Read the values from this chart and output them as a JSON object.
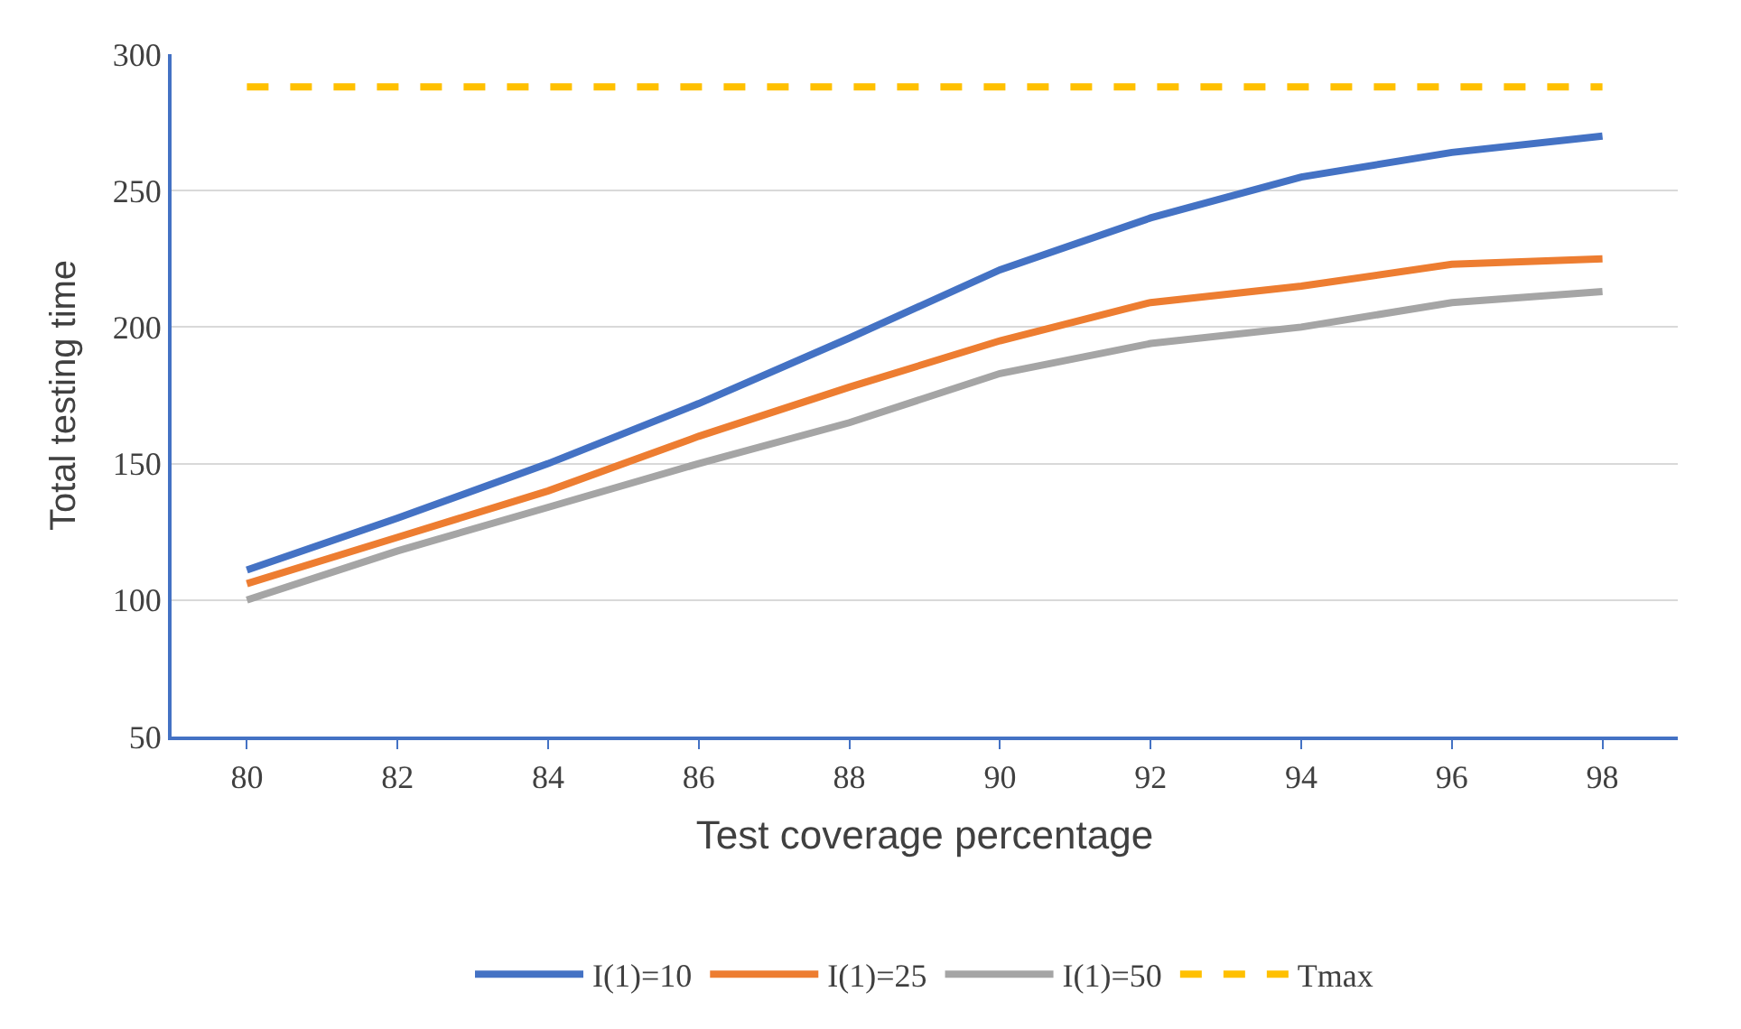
{
  "chart_data": {
    "type": "line",
    "xlabel": "Test coverage percentage",
    "ylabel": "Total testing time",
    "categories": [
      "80",
      "82",
      "84",
      "86",
      "88",
      "90",
      "92",
      "94",
      "96",
      "98"
    ],
    "series": [
      {
        "name": "I(1)=10",
        "color": "#4472c4",
        "values": [
          111,
          130,
          150,
          172,
          196,
          221,
          240,
          255,
          264,
          270
        ]
      },
      {
        "name": "I(1)=25",
        "color": "#ed7d31",
        "values": [
          106,
          123,
          140,
          160,
          178,
          195,
          209,
          215,
          223,
          225
        ]
      },
      {
        "name": "I(1)=50",
        "color": "#a5a5a5",
        "values": [
          100,
          118,
          134,
          150,
          165,
          183,
          194,
          200,
          209,
          213
        ]
      },
      {
        "name": "Tmax",
        "color": "#ffc000",
        "line_style": "dashed",
        "values": [
          288,
          288,
          288,
          288,
          288,
          288,
          288,
          288,
          288,
          288
        ]
      }
    ],
    "ylim": [
      50,
      300
    ],
    "yticks": [
      50,
      100,
      150,
      200,
      250,
      300
    ],
    "grid": "y",
    "legend": "bottom",
    "marker": "none"
  }
}
